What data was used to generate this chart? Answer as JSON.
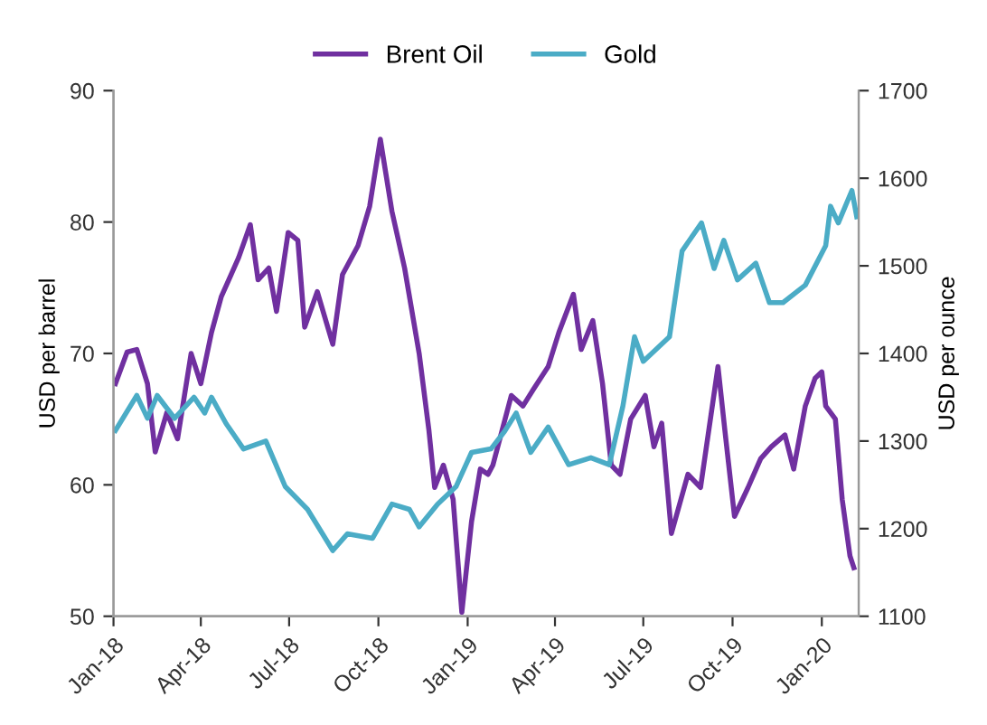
{
  "chart_data": {
    "type": "line",
    "ylabel": "USD per barrel",
    "y2label": "USD per ounce",
    "legend": "top",
    "grid": false,
    "marker": "none",
    "line_style": "solid",
    "xlim": [
      "2018-01-01",
      "2020-02-08"
    ],
    "xticks": [
      {
        "value": "2018-01-01",
        "label": "Jan-18"
      },
      {
        "value": "2018-04-01",
        "label": "Apr-18"
      },
      {
        "value": "2018-07-01",
        "label": "Jul-18"
      },
      {
        "value": "2018-10-01",
        "label": "Oct-18"
      },
      {
        "value": "2019-01-01",
        "label": "Jan-19"
      },
      {
        "value": "2019-04-01",
        "label": "Apr-19"
      },
      {
        "value": "2019-07-01",
        "label": "Jul-19"
      },
      {
        "value": "2019-10-01",
        "label": "Oct-19"
      },
      {
        "value": "2020-01-01",
        "label": "Jan-20"
      }
    ],
    "ylim": [
      50,
      90
    ],
    "yticks": [
      50,
      60,
      70,
      80,
      90
    ],
    "y2lim": [
      1100,
      1700
    ],
    "y2ticks": [
      1100,
      1200,
      1300,
      1400,
      1500,
      1600,
      1700
    ],
    "series": [
      {
        "name": "Brent Oil",
        "color": "#7030a0",
        "x": [
          "2018-01-03",
          "2018-01-15",
          "2018-01-25",
          "2018-02-05",
          "2018-02-13",
          "2018-02-25",
          "2018-03-08",
          "2018-03-22",
          "2018-04-01",
          "2018-04-12",
          "2018-04-22",
          "2018-05-10",
          "2018-05-22",
          "2018-05-30",
          "2018-06-10",
          "2018-06-18",
          "2018-06-30",
          "2018-07-10",
          "2018-07-17",
          "2018-07-30",
          "2018-08-15",
          "2018-08-25",
          "2018-09-10",
          "2018-09-22",
          "2018-10-03",
          "2018-10-15",
          "2018-10-28",
          "2018-11-12",
          "2018-11-22",
          "2018-11-28",
          "2018-12-07",
          "2018-12-17",
          "2018-12-26",
          "2019-01-05",
          "2019-01-14",
          "2019-01-22",
          "2019-01-27",
          "2019-02-15",
          "2019-02-27",
          "2019-03-10",
          "2019-03-25",
          "2019-04-05",
          "2019-04-20",
          "2019-04-28",
          "2019-05-10",
          "2019-05-20",
          "2019-05-29",
          "2019-06-07",
          "2019-06-18",
          "2019-07-03",
          "2019-07-12",
          "2019-07-20",
          "2019-07-30",
          "2019-08-16",
          "2019-08-29",
          "2019-09-16",
          "2019-09-23",
          "2019-10-03",
          "2019-10-17",
          "2019-10-30",
          "2019-11-10",
          "2019-11-24",
          "2019-12-03",
          "2019-12-15",
          "2019-12-25",
          "2020-01-01",
          "2020-01-05",
          "2020-01-15",
          "2020-01-22",
          "2020-01-30",
          "2020-02-03"
        ],
        "values": [
          67.7,
          70.1,
          70.3,
          67.7,
          62.5,
          65.5,
          63.5,
          70.0,
          67.7,
          71.6,
          74.3,
          77.3,
          79.8,
          75.6,
          76.5,
          73.2,
          79.2,
          78.6,
          72.0,
          74.7,
          70.7,
          76.0,
          78.2,
          81.2,
          86.3,
          80.8,
          76.5,
          70.0,
          64.2,
          59.8,
          61.5,
          58.9,
          50.3,
          57.2,
          61.2,
          60.8,
          61.5,
          66.8,
          66.0,
          67.3,
          69.0,
          71.6,
          74.5,
          70.3,
          72.5,
          67.7,
          61.5,
          60.8,
          65.0,
          66.8,
          62.9,
          64.7,
          56.3,
          60.8,
          59.8,
          69.0,
          64.2,
          57.6,
          59.8,
          62.0,
          62.9,
          63.8,
          61.2,
          66.0,
          68.1,
          68.6,
          66.0,
          65.0,
          58.9,
          54.6,
          53.7
        ]
      },
      {
        "name": "Gold",
        "color": "#4bacc6",
        "axis": "y2",
        "x": [
          "2018-01-03",
          "2018-01-25",
          "2018-02-05",
          "2018-02-15",
          "2018-03-05",
          "2018-03-25",
          "2018-04-05",
          "2018-04-12",
          "2018-04-27",
          "2018-05-15",
          "2018-06-07",
          "2018-06-27",
          "2018-07-20",
          "2018-08-15",
          "2018-08-30",
          "2018-09-25",
          "2018-10-15",
          "2018-11-02",
          "2018-11-12",
          "2018-12-01",
          "2018-12-20",
          "2019-01-05",
          "2019-01-25",
          "2019-02-08",
          "2019-02-20",
          "2019-03-07",
          "2019-03-25",
          "2019-04-15",
          "2019-05-08",
          "2019-05-27",
          "2019-06-10",
          "2019-06-22",
          "2019-07-01",
          "2019-07-28",
          "2019-08-10",
          "2019-08-30",
          "2019-09-12",
          "2019-09-22",
          "2019-10-06",
          "2019-10-25",
          "2019-11-08",
          "2019-11-22",
          "2019-12-15",
          "2020-01-05",
          "2020-01-10",
          "2020-01-18",
          "2020-02-01",
          "2020-02-06"
        ],
        "values": [
          1312,
          1352,
          1326,
          1352,
          1326,
          1350,
          1332,
          1350,
          1320,
          1291,
          1300,
          1248,
          1222,
          1175,
          1194,
          1189,
          1228,
          1222,
          1202,
          1228,
          1248,
          1287,
          1291,
          1311,
          1332,
          1287,
          1316,
          1273,
          1281,
          1273,
          1340,
          1419,
          1391,
          1419,
          1517,
          1549,
          1497,
          1529,
          1484,
          1503,
          1458,
          1458,
          1478,
          1523,
          1568,
          1549,
          1586,
          1556
        ]
      }
    ]
  }
}
